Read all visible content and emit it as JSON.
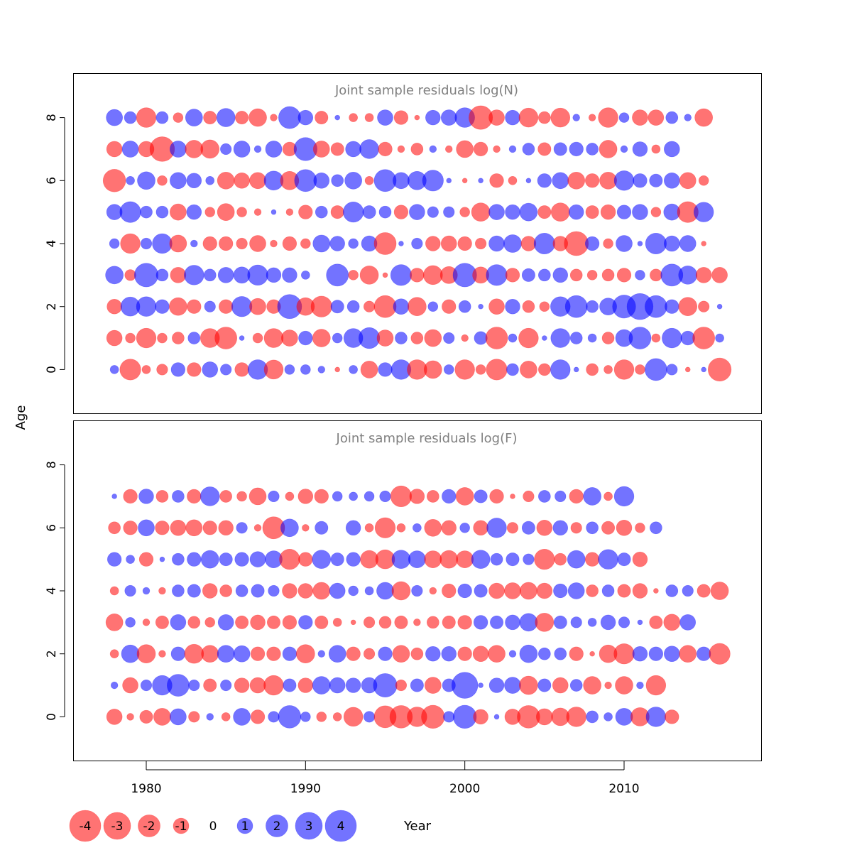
{
  "chart_data": {
    "type": "scatter",
    "subtype": "bubble",
    "xlabel": "Year",
    "ylabel": "Age",
    "x_ticks": [
      1980,
      1990,
      2000,
      2010
    ],
    "y_ticks": [
      0,
      2,
      4,
      6,
      8
    ],
    "xlim": [
      1975.5,
      2018.5
    ],
    "ylim": [
      -1.4,
      9.4
    ],
    "years": [
      1978,
      1979,
      1980,
      1981,
      1982,
      1983,
      1984,
      1985,
      1986,
      1987,
      1988,
      1989,
      1990,
      1991,
      1992,
      1993,
      1994,
      1995,
      1996,
      1997,
      1998,
      1999,
      2000,
      2001,
      2002,
      2003,
      2004,
      2005,
      2006,
      2007,
      2008,
      2009,
      2010,
      2011,
      2012,
      2013,
      2014,
      2015,
      2016
    ],
    "colors": {
      "negative": "#FF0000",
      "positive": "#0000FF",
      "opacity": 0.55
    },
    "panels": [
      {
        "title": "Joint sample residuals log(N)",
        "ages": [
          0,
          1,
          2,
          3,
          4,
          5,
          6,
          7,
          8
        ],
        "residuals": [
          [
            0.3,
            -1.8,
            -0.3,
            -0.5,
            0.8,
            -0.8,
            1.0,
            0.5,
            -0.8,
            1.6,
            -1.5,
            0.4,
            0.4,
            0.2,
            -0.1,
            0.3,
            -1.2,
            0.8,
            1.6,
            -1.6,
            -1.3,
            0.4,
            -1.6,
            -0.4,
            -1.8,
            0.6,
            -1.2,
            -0.6,
            1.6,
            0.1,
            -0.6,
            -0.3,
            -1.6,
            -0.4,
            2.0,
            0.5,
            -0.1,
            0.1,
            -2.2
          ],
          [
            -1.0,
            -0.4,
            -1.6,
            -0.4,
            -0.6,
            0.6,
            -1.5,
            -2.0,
            0.1,
            -0.4,
            -1.5,
            -1.1,
            0.8,
            -1.3,
            0.4,
            1.5,
            1.8,
            -1.1,
            0.6,
            -0.6,
            -1.2,
            0.5,
            -0.2,
            0.7,
            -2.0,
            0.3,
            -1.6,
            0.1,
            1.5,
            0.6,
            0.3,
            -0.6,
            1.2,
            2.0,
            -0.3,
            1.6,
            0.8,
            -2.0,
            0.3
          ],
          [
            -0.9,
            1.5,
            1.6,
            0.8,
            -1.3,
            -0.8,
            0.5,
            -0.8,
            1.7,
            -1.1,
            -0.8,
            2.4,
            -1.3,
            -1.8,
            0.7,
            0.6,
            -0.5,
            -2.0,
            1.0,
            -1.4,
            0.4,
            -0.8,
            0.6,
            0.1,
            -1.0,
            0.9,
            -0.6,
            -0.4,
            1.6,
            2.0,
            0.6,
            1.2,
            2.2,
            2.8,
            2.0,
            0.8,
            -1.4,
            -0.5,
            0.1
          ],
          [
            1.3,
            -0.5,
            2.3,
            0.6,
            -1.0,
            1.6,
            0.6,
            1.0,
            1.1,
            1.7,
            0.9,
            0.9,
            0.3,
            0.0,
            2.0,
            -0.4,
            -1.4,
            -0.1,
            1.8,
            -0.8,
            -1.5,
            -1.2,
            2.3,
            -1.1,
            1.8,
            -0.8,
            0.7,
            0.6,
            0.9,
            -0.6,
            -0.4,
            -0.6,
            -0.8,
            0.4,
            -0.6,
            2.0,
            1.4,
            -1.0,
            -1.0
          ],
          [
            0.4,
            -1.6,
            0.5,
            1.6,
            -1.2,
            0.2,
            -0.8,
            -0.8,
            -0.5,
            -1.1,
            -0.2,
            -0.8,
            -0.4,
            1.2,
            0.9,
            0.4,
            1.0,
            -2.0,
            0.1,
            0.5,
            -0.9,
            -1.0,
            -0.8,
            -0.5,
            1.0,
            1.3,
            -0.9,
            1.8,
            -0.9,
            -2.4,
            0.8,
            -0.4,
            1.1,
            0.1,
            1.8,
            1.0,
            1.1,
            -0.1
          ],
          [
            1.0,
            1.8,
            0.6,
            0.6,
            -1.1,
            0.9,
            -0.4,
            -1.2,
            -0.4,
            -0.2,
            0.1,
            -0.2,
            -0.8,
            0.6,
            -0.7,
            1.7,
            0.7,
            0.6,
            -0.8,
            1.0,
            0.5,
            0.5,
            -0.4,
            -1.4,
            1.0,
            0.9,
            1.3,
            -0.7,
            -1.4,
            0.9,
            -0.7,
            -0.9,
            0.8,
            1.0,
            -0.4,
            1.1,
            -1.8,
            1.6
          ],
          [
            -2.1,
            0.3,
            1.3,
            -0.4,
            1.1,
            0.9,
            0.3,
            -1.2,
            -1.0,
            -1.1,
            1.5,
            -1.4,
            2.0,
            1.0,
            0.6,
            1.2,
            -0.3,
            2.0,
            1.1,
            1.4,
            1.8,
            0.1,
            -0.1,
            0.1,
            -0.8,
            -0.3,
            0.1,
            0.8,
            1.1,
            -1.2,
            -0.8,
            -1.2,
            1.6,
            0.8,
            0.7,
            1.0,
            -1.1,
            -0.4
          ],
          [
            -1.0,
            1.1,
            -1.0,
            -2.5,
            1.1,
            -1.3,
            -1.4,
            0.5,
            1.1,
            0.2,
            1.1,
            -0.8,
            2.2,
            -1.1,
            -0.7,
            1.0,
            1.5,
            -0.8,
            -0.2,
            -0.6,
            0.2,
            -0.2,
            -1.2,
            -0.8,
            -0.2,
            0.2,
            0.6,
            -0.7,
            0.7,
            0.8,
            0.6,
            -1.3,
            0.2,
            0.9,
            -0.3,
            1.0
          ],
          [
            1.1,
            0.6,
            -1.6,
            0.6,
            -0.4,
            1.2,
            -0.7,
            1.4,
            -0.7,
            -1.3,
            -0.2,
            2.0,
            0.9,
            -0.7,
            0.1,
            -0.3,
            -0.3,
            1.0,
            -0.8,
            -0.1,
            0.9,
            1.0,
            1.6,
            -2.3,
            -1.0,
            0.9,
            -1.5,
            -0.6,
            -1.5,
            0.2,
            -0.2,
            -1.6,
            0.4,
            -1.0,
            -1.0,
            0.6,
            0.2,
            -1.3
          ]
        ]
      },
      {
        "title": "Joint sample residuals log(F)",
        "ages": [
          0,
          1,
          2,
          3,
          4,
          5,
          6,
          7
        ],
        "residuals": [
          [
            -1.0,
            -0.2,
            -0.7,
            -1.2,
            1.1,
            -0.5,
            0.2,
            -0.3,
            1.2,
            -0.8,
            0.5,
            2.1,
            0.4,
            -0.4,
            -0.3,
            -1.5,
            0.5,
            -2.0,
            -2.1,
            -1.6,
            -2.2,
            0.5,
            2.2,
            -0.9,
            0.1,
            -1.0,
            -2.1,
            -1.1,
            -1.3,
            -1.6,
            0.6,
            0.3,
            1.2,
            -1.4,
            1.6,
            -0.8
          ],
          [
            0.2,
            -1.0,
            0.5,
            1.6,
            2.0,
            0.5,
            -0.7,
            0.5,
            -0.9,
            -1.0,
            -1.6,
            0.7,
            -0.9,
            1.3,
            1.0,
            0.9,
            1.0,
            2.3,
            -0.5,
            0.7,
            -1.1,
            0.7,
            2.8,
            0.1,
            0.9,
            1.1,
            -1.4,
            0.7,
            -1.0,
            0.6,
            -1.3,
            -0.2,
            -1.3,
            0.2,
            -1.6
          ],
          [
            -0.3,
            1.3,
            -1.4,
            -0.2,
            0.8,
            -1.5,
            -1.2,
            1.2,
            1.1,
            -0.8,
            -0.8,
            0.8,
            -1.4,
            0.2,
            1.2,
            -0.8,
            -0.5,
            0.8,
            -1.2,
            -0.6,
            0.9,
            0.9,
            -0.8,
            -1.0,
            -1.2,
            0.2,
            1.3,
            0.6,
            0.6,
            -0.8,
            -0.1,
            -1.3,
            -1.7,
            0.9,
            0.8,
            1.0,
            -1.2,
            0.8,
            -1.8
          ],
          [
            -1.2,
            0.4,
            -0.2,
            -0.7,
            1.0,
            -0.6,
            -0.4,
            1.0,
            -0.7,
            -0.9,
            -0.7,
            -0.8,
            0.8,
            -0.7,
            -0.3,
            -0.1,
            -0.5,
            -0.6,
            -0.7,
            -0.2,
            -0.6,
            -0.7,
            -0.8,
            0.8,
            0.7,
            0.9,
            1.3,
            -1.4,
            0.7,
            0.5,
            0.3,
            0.9,
            0.5,
            0.1,
            -0.7,
            -1.1,
            1.0
          ],
          [
            -0.3,
            0.5,
            0.2,
            -0.2,
            0.6,
            0.7,
            -0.9,
            -0.6,
            0.6,
            0.7,
            0.5,
            -0.9,
            -0.9,
            -1.2,
            1.0,
            0.4,
            0.3,
            1.2,
            -1.4,
            0.5,
            -0.2,
            -0.8,
            0.8,
            0.7,
            -1.0,
            -1.1,
            -1.2,
            -1.0,
            0.8,
            1.1,
            -0.6,
            0.6,
            -0.7,
            -0.9,
            -0.1,
            0.6,
            0.5,
            -0.7,
            -1.3
          ],
          [
            0.8,
            0.3,
            -0.8,
            0.1,
            0.6,
            0.8,
            1.3,
            0.7,
            0.8,
            1.0,
            1.2,
            -1.7,
            -0.8,
            1.4,
            0.7,
            0.8,
            -1.3,
            -1.5,
            1.4,
            1.2,
            -1.2,
            -1.3,
            -1.2,
            1.4,
            0.6,
            0.7,
            0.5,
            -1.7,
            -0.6,
            1.3,
            -0.8,
            1.6,
            0.7,
            -0.9
          ],
          [
            -0.6,
            -0.8,
            1.1,
            -0.8,
            -1.0,
            -1.1,
            -0.8,
            -0.9,
            0.5,
            -0.2,
            -2.0,
            1.3,
            -0.2,
            0.7,
            0.0,
            0.9,
            -0.3,
            -1.7,
            -0.3,
            0.3,
            -1.2,
            -0.9,
            0.4,
            -0.9,
            1.6,
            -0.5,
            0.7,
            -1.0,
            0.9,
            -0.5,
            0.6,
            -0.7,
            -1.0,
            -0.4,
            0.6
          ],
          [
            0.1,
            -0.8,
            0.9,
            -0.6,
            0.6,
            -0.8,
            1.5,
            -0.6,
            -0.4,
            -1.2,
            0.5,
            -0.3,
            -0.9,
            -0.8,
            0.4,
            0.3,
            0.4,
            0.5,
            -1.8,
            -0.9,
            -0.6,
            0.8,
            -1.3,
            0.7,
            -0.8,
            -0.1,
            -0.5,
            0.6,
            0.5,
            -0.8,
            1.3,
            -0.3,
            1.6
          ]
        ]
      }
    ],
    "legend": {
      "values": [
        -4,
        -3,
        -2,
        -1,
        0,
        1,
        2,
        3,
        4
      ],
      "labels": [
        "-4",
        "-3",
        "-2",
        "-1",
        "0",
        "1",
        "2",
        "3",
        "4"
      ],
      "placement": "bottom"
    }
  }
}
